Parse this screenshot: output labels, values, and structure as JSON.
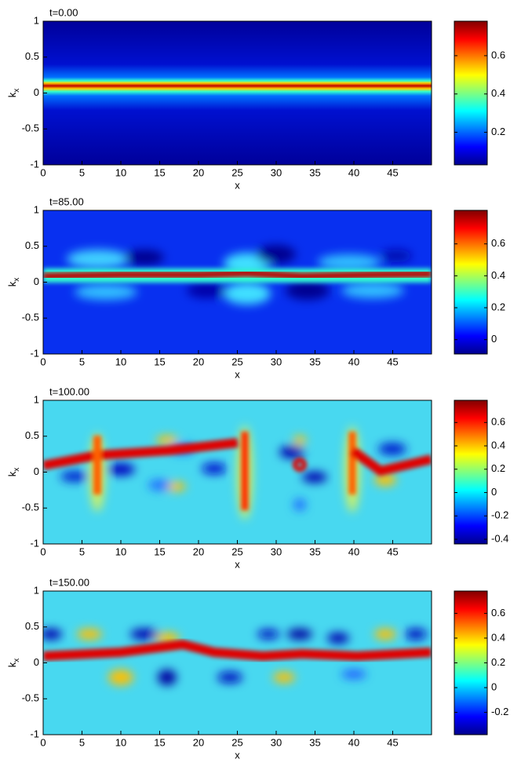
{
  "chart_data": [
    {
      "type": "heatmap",
      "title": "t=0.00",
      "xlabel": "x",
      "ylabel": {
        "text": "k",
        "subscript": "x"
      },
      "xlim": [
        0,
        50
      ],
      "xticks": [
        0,
        5,
        10,
        15,
        20,
        25,
        30,
        35,
        40,
        45
      ],
      "ylim": [
        -1,
        1
      ],
      "yticks": [
        -1,
        -0.5,
        0,
        0.5,
        1
      ],
      "colormap": "jet",
      "colorbar": {
        "lim": [
          0.03,
          0.78
        ],
        "ticks": [
          0.2,
          0.4,
          0.6
        ]
      }
    },
    {
      "type": "heatmap",
      "title": "t=85.00",
      "xlabel": "x",
      "ylabel": {
        "text": "k",
        "subscript": "x"
      },
      "xlim": [
        0,
        50
      ],
      "xticks": [
        0,
        5,
        10,
        15,
        20,
        25,
        30,
        35,
        40,
        45
      ],
      "ylim": [
        -1,
        1
      ],
      "yticks": [
        -1,
        -0.5,
        0,
        0.5,
        1
      ],
      "colormap": "jet",
      "colorbar": {
        "lim": [
          -0.09,
          0.81
        ],
        "ticks": [
          0,
          0.2,
          0.4,
          0.6
        ]
      }
    },
    {
      "type": "heatmap",
      "title": "t=100.00",
      "xlabel": "x",
      "ylabel": {
        "text": "k",
        "subscript": "x"
      },
      "xlim": [
        0,
        50
      ],
      "xticks": [
        0,
        5,
        10,
        15,
        20,
        25,
        30,
        35,
        40,
        45
      ],
      "ylim": [
        -1,
        1
      ],
      "yticks": [
        -1,
        -0.5,
        0,
        0.5,
        1
      ],
      "colormap": "jet",
      "colorbar": {
        "lim": [
          -0.44,
          0.79
        ],
        "ticks": [
          -0.4,
          -0.2,
          0,
          0.2,
          0.4,
          0.6
        ]
      }
    },
    {
      "type": "heatmap",
      "title": "t=150.00",
      "xlabel": "x",
      "ylabel": {
        "text": "k",
        "subscript": "x"
      },
      "xlim": [
        0,
        50
      ],
      "xticks": [
        0,
        5,
        10,
        15,
        20,
        25,
        30,
        35,
        40,
        45
      ],
      "ylim": [
        -1,
        1
      ],
      "yticks": [
        -1,
        -0.5,
        0,
        0.5,
        1
      ],
      "colormap": "jet",
      "colorbar": {
        "lim": [
          -0.38,
          0.78
        ],
        "ticks": [
          -0.2,
          0,
          0.2,
          0.4,
          0.6
        ]
      }
    }
  ]
}
